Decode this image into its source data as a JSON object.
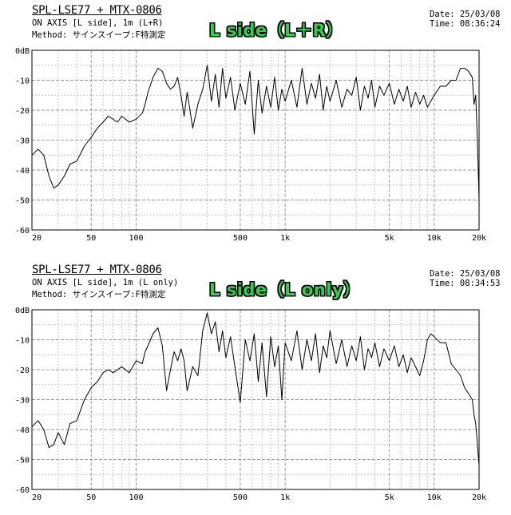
{
  "charts": [
    {
      "title": "SPL-LSE77 + MTX-0806",
      "line1": "ON AXIS [L side], 1m (L+R)",
      "line2": "Method: サインスイープ:F特測定",
      "date": "Date: 25/03/08",
      "time": "Time: 08:36:24",
      "badge": "L side（L＋R）"
    },
    {
      "title": "SPL-LSE77 + MTX-0806",
      "line1": "ON AXIS [L side], 1m (L only)",
      "line2": "Method: サインスイープ:F特測定",
      "date": "Date: 25/03/08",
      "time": "Time: 08:34:53",
      "badge": "L side（L only）"
    }
  ],
  "axis": {
    "y_ticks": [
      "0dB",
      "-10",
      "-20",
      "-30",
      "-40",
      "-50",
      "-60"
    ],
    "x_ticks": [
      "20",
      "50",
      "100",
      "500",
      "1k",
      "5k",
      "10k",
      "20k"
    ]
  },
  "chart_data": [
    {
      "type": "line",
      "title": "SPL-LSE77 + MTX-0806",
      "xlabel": "",
      "ylabel": "",
      "xscale": "log",
      "xlim": [
        20,
        20000
      ],
      "ylim": [
        -60,
        0
      ],
      "grid": true,
      "x_tick_values": [
        20,
        50,
        100,
        500,
        1000,
        5000,
        10000,
        20000
      ],
      "y_tick_values": [
        0,
        -10,
        -20,
        -30,
        -40,
        -50,
        -60
      ],
      "series": [
        {
          "x": [
            20,
            22,
            24,
            26,
            28,
            30,
            33,
            36,
            40,
            45,
            50,
            55,
            60,
            65,
            70,
            75,
            80,
            90,
            100,
            110,
            115,
            120,
            130,
            140,
            150,
            160,
            170,
            180,
            190,
            200,
            210,
            220,
            240,
            260,
            280,
            300,
            320,
            340,
            360,
            380,
            400,
            430,
            460,
            500,
            540,
            580,
            620,
            660,
            700,
            750,
            800,
            850,
            900,
            950,
            1000,
            1100,
            1200,
            1300,
            1400,
            1500,
            1600,
            1700,
            1800,
            1900,
            2000,
            2200,
            2400,
            2600,
            2800,
            3000,
            3200,
            3400,
            3600,
            3800,
            4000,
            4300,
            4600,
            5000,
            5400,
            5800,
            6200,
            6600,
            7000,
            7500,
            8000,
            8500,
            9000,
            9500,
            10000,
            11000,
            12000,
            13000,
            14000,
            15000,
            16000,
            17000,
            18000,
            18500,
            19000,
            19500,
            20000
          ],
          "y": [
            -35,
            -33,
            -35,
            -42,
            -46,
            -45,
            -42,
            -38,
            -37,
            -32,
            -29,
            -26,
            -24,
            -22,
            -23,
            -24,
            -22,
            -24,
            -23,
            -21,
            -18,
            -14,
            -9,
            -6,
            -7,
            -11,
            -13,
            -12,
            -9,
            -15,
            -22,
            -14,
            -26,
            -18,
            -13,
            -5,
            -17,
            -8,
            -19,
            -6,
            -16,
            -9,
            -20,
            -11,
            -18,
            -7,
            -28,
            -10,
            -21,
            -12,
            -19,
            -9,
            -20,
            -13,
            -17,
            -10,
            -19,
            -6,
            -18,
            -11,
            -16,
            -8,
            -20,
            -12,
            -17,
            -10,
            -19,
            -13,
            -15,
            -9,
            -20,
            -12,
            -16,
            -10,
            -19,
            -12,
            -15,
            -11,
            -18,
            -13,
            -17,
            -12,
            -19,
            -14,
            -18,
            -15,
            -19,
            -17,
            -15,
            -12,
            -12,
            -10,
            -10,
            -6,
            -6,
            -7,
            -9,
            -18,
            -15,
            -30,
            -50
          ]
        }
      ]
    },
    {
      "type": "line",
      "title": "SPL-LSE77 + MTX-0806",
      "xlabel": "",
      "ylabel": "",
      "xscale": "log",
      "xlim": [
        20,
        20000
      ],
      "ylim": [
        -60,
        0
      ],
      "grid": true,
      "x_tick_values": [
        20,
        50,
        100,
        500,
        1000,
        5000,
        10000,
        20000
      ],
      "y_tick_values": [
        0,
        -10,
        -20,
        -30,
        -40,
        -50,
        -60
      ],
      "series": [
        {
          "x": [
            20,
            22,
            24,
            26,
            28,
            30,
            33,
            36,
            40,
            45,
            50,
            55,
            60,
            65,
            70,
            75,
            80,
            90,
            100,
            110,
            115,
            120,
            130,
            140,
            150,
            160,
            170,
            180,
            190,
            200,
            210,
            220,
            240,
            260,
            280,
            300,
            320,
            340,
            360,
            380,
            400,
            430,
            460,
            500,
            540,
            580,
            620,
            660,
            700,
            750,
            800,
            850,
            900,
            950,
            1000,
            1100,
            1200,
            1300,
            1400,
            1500,
            1600,
            1700,
            1800,
            1900,
            2000,
            2200,
            2400,
            2600,
            2800,
            3000,
            3200,
            3400,
            3600,
            3800,
            4000,
            4300,
            4600,
            5000,
            5400,
            5800,
            6200,
            6600,
            7000,
            7500,
            8000,
            8500,
            9000,
            9500,
            10000,
            11000,
            12000,
            13000,
            14000,
            15000,
            16000,
            17000,
            18000,
            18500,
            19000,
            19500,
            20000
          ],
          "y": [
            -39,
            -37,
            -40,
            -46,
            -45,
            -41,
            -45,
            -38,
            -37,
            -30,
            -26,
            -24,
            -21,
            -20,
            -21,
            -20,
            -19,
            -21,
            -17,
            -18,
            -14,
            -12,
            -8,
            -6,
            -12,
            -27,
            -20,
            -14,
            -17,
            -13,
            -17,
            -27,
            -19,
            -22,
            -7,
            -1,
            -8,
            -4,
            -14,
            -7,
            -16,
            -9,
            -19,
            -31,
            -10,
            -17,
            -8,
            -24,
            -11,
            -29,
            -9,
            -19,
            -12,
            -30,
            -11,
            -17,
            -7,
            -20,
            -10,
            -17,
            -8,
            -21,
            -12,
            -16,
            -7,
            -18,
            -10,
            -19,
            -12,
            -17,
            -9,
            -20,
            -13,
            -16,
            -11,
            -19,
            -13,
            -17,
            -12,
            -19,
            -15,
            -21,
            -16,
            -19,
            -22,
            -17,
            -10,
            -8,
            -9,
            -11,
            -11,
            -18,
            -20,
            -22,
            -26,
            -28,
            -30,
            -35,
            -38,
            -45,
            -52
          ]
        }
      ]
    }
  ]
}
